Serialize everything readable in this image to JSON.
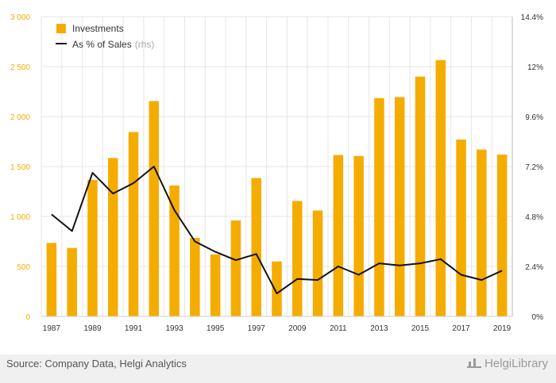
{
  "chart_data": {
    "type": "bar",
    "categories": [
      "1987",
      "1988",
      "1989",
      "1990",
      "1991",
      "1992",
      "1993",
      "1994",
      "1995",
      "1996",
      "1997",
      "1998",
      "2009",
      "2010",
      "2011",
      "2012",
      "2013",
      "2014",
      "2015",
      "2016",
      "2017",
      "2018",
      "2019"
    ],
    "x_tick_labels": [
      "1987",
      "1989",
      "1991",
      "1993",
      "1995",
      "1997",
      "2009",
      "2011",
      "2013",
      "2015",
      "2017",
      "2019"
    ],
    "series": [
      {
        "name": "Investments",
        "type": "bar",
        "axis": "left",
        "color": "#f5ac00",
        "values": [
          735,
          685,
          1365,
          1585,
          1845,
          2155,
          1310,
          785,
          620,
          960,
          1385,
          550,
          1155,
          1060,
          1615,
          1605,
          2185,
          2195,
          2400,
          2565,
          1770,
          1670,
          1620
        ]
      },
      {
        "name": "As % of Sales",
        "name_suffix": "(rhs)",
        "type": "line",
        "axis": "right",
        "color": "#111111",
        "values": [
          4.9,
          4.1,
          6.9,
          5.9,
          6.4,
          7.2,
          5.1,
          3.6,
          3.1,
          2.7,
          3.0,
          1.1,
          1.8,
          1.75,
          2.4,
          2.0,
          2.55,
          2.45,
          2.55,
          2.75,
          2.0,
          1.75,
          2.2
        ]
      }
    ],
    "y_left": {
      "ylim": [
        0,
        3000
      ],
      "ticks": [
        "0",
        "500",
        "1 000",
        "1 500",
        "2 000",
        "2 500",
        "3 000"
      ],
      "tick_color": "#f5ac00"
    },
    "y_right": {
      "ylim": [
        0,
        14.4
      ],
      "ticks": [
        "0%",
        "2.4%",
        "4.8%",
        "7.2%",
        "9.6%",
        "12%",
        "14.4%"
      ]
    },
    "grid": true,
    "legend_position": "top-left"
  },
  "footer": {
    "source": "Source: Company Data, Helgi Analytics",
    "brand": "HelgiLibrary"
  },
  "colors": {
    "bar": "#f5ac00",
    "line": "#111111",
    "grid": "#e6e6e6",
    "footer_bg": "#f0f0f0"
  }
}
